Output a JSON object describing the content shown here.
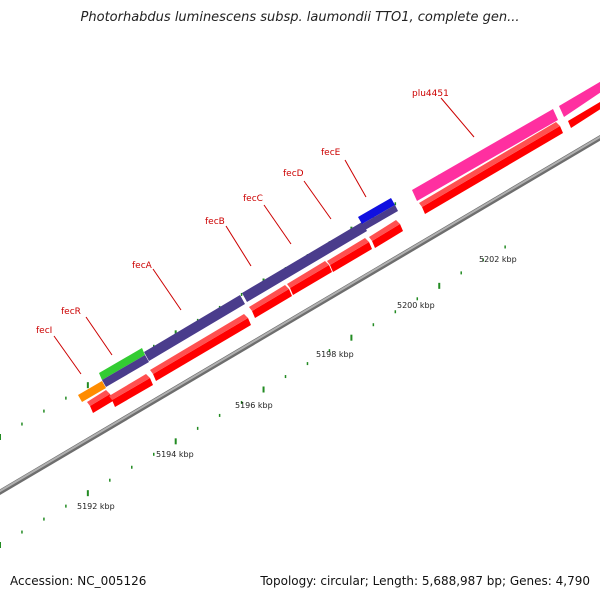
{
  "title": "Photorhabdus luminescens subsp. laumondii TTO1, complete gen...",
  "footer": {
    "accession": "Accession: NC_005126",
    "summary": "Topology: circular; Length: 5,688,987 bp; Genes: 4,790"
  },
  "colors": {
    "backbone": "#8c8c8c",
    "cds": "#ff0000",
    "tick": "#228b22",
    "label": "#cc0000",
    "fecI": "#ff8c00",
    "fecR": "#33cc33",
    "fec_operon": "#4a3c8c",
    "fecE": "#1010e0",
    "plu4451": "#ff2fa0"
  },
  "kbp_labels": [
    "5192 kbp",
    "5194 kbp",
    "5196 kbp",
    "5198 kbp",
    "5200 kbp",
    "5202 kbp"
  ],
  "gene_labels": [
    "fecI",
    "fecR",
    "fecA",
    "fecB",
    "fecC",
    "fecD",
    "fecE",
    "plu4451"
  ]
}
